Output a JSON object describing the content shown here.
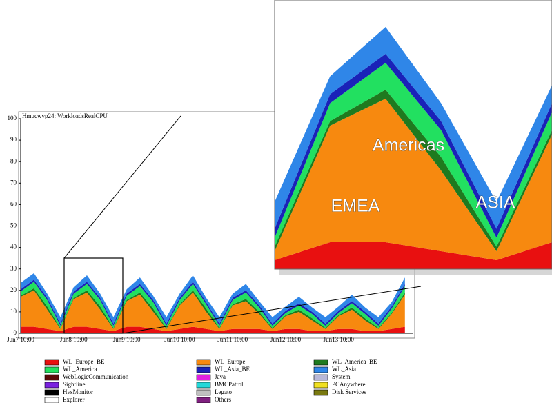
{
  "chart_data": {
    "type": "stacked-area",
    "title": "Hmucwvp24: WorkloadsRealCPU",
    "categories": [
      "Jun7 10:00",
      null,
      null,
      null,
      "Jun8 10:00",
      null,
      null,
      null,
      "Jun9 10:00",
      null,
      null,
      null,
      "Jun10 10:00",
      null,
      null,
      null,
      "Jun11 10:00",
      null,
      null,
      null,
      "Jun12 10:00",
      null,
      null,
      null,
      "Jun13 10:00",
      null,
      null,
      null,
      null,
      null
    ],
    "ylim": [
      0,
      100
    ],
    "yticks": [
      0,
      10,
      20,
      30,
      40,
      50,
      60,
      70,
      80,
      90,
      100
    ],
    "annotations": [
      "Americas",
      "EMEA",
      "ASIA"
    ],
    "series": [
      {
        "name": "WL_Europe_BE",
        "color": "#e81010",
        "values": [
          3,
          3,
          2,
          1,
          3,
          3,
          2,
          1,
          3,
          3,
          2,
          1,
          2,
          3,
          2,
          1,
          2,
          2,
          2,
          1,
          2,
          2,
          1,
          1,
          2,
          2,
          1,
          1,
          2,
          3
        ]
      },
      {
        "name": "WL_Europe",
        "color": "#f7890f",
        "values": [
          14,
          17,
          9,
          1,
          13,
          16,
          9,
          1,
          12,
          15,
          8,
          1,
          11,
          16,
          8,
          1,
          11,
          13,
          7,
          1,
          6,
          8,
          5,
          1,
          6,
          9,
          5,
          1,
          7,
          15
        ]
      },
      {
        "name": "WL_America_BE",
        "color": "#1f7a1f",
        "values": [
          0.5,
          1,
          1.5,
          0.5,
          0.5,
          1,
          1.5,
          0.5,
          0.5,
          1,
          1.5,
          0.5,
          0.5,
          1,
          1.5,
          0.5,
          0.5,
          1,
          1,
          0.5,
          0.5,
          1,
          1,
          0.5,
          0.5,
          1,
          1,
          0.5,
          0.5,
          1
        ]
      },
      {
        "name": "WL_America",
        "color": "#22e060",
        "values": [
          2,
          3,
          3,
          1,
          2,
          3,
          3,
          1,
          2,
          3,
          3,
          1,
          2,
          3,
          2,
          1,
          2,
          3,
          2,
          1,
          1,
          2,
          2,
          1,
          1,
          2,
          2,
          1,
          2,
          3
        ]
      },
      {
        "name": "WL_Asia_BE",
        "color": "#1a22b8",
        "values": [
          1,
          1,
          1,
          1,
          1,
          1,
          1,
          1,
          1,
          1,
          1,
          1,
          1,
          1,
          1,
          1,
          1,
          1,
          1,
          1,
          1,
          1,
          1,
          1,
          1,
          1,
          1,
          1,
          1,
          1
        ]
      },
      {
        "name": "WL_Asia",
        "color": "#2f86e8",
        "values": [
          3,
          3,
          2,
          3,
          2,
          3,
          2,
          3,
          2,
          3,
          2,
          3,
          2,
          3,
          2,
          3,
          2,
          3,
          2,
          3,
          2,
          3,
          2,
          3,
          2,
          3,
          2,
          3,
          2,
          3
        ]
      },
      {
        "name": "WebLogicCommunication",
        "color": "#5a0a0a",
        "values": [
          0,
          0,
          0,
          0,
          0,
          0,
          0,
          0,
          0,
          0,
          0,
          0,
          0,
          0,
          0,
          0,
          0,
          0,
          0,
          0,
          0,
          0,
          0,
          0,
          0,
          0,
          0,
          0,
          0,
          0
        ]
      },
      {
        "name": "Java",
        "color": "#e020e0",
        "values": [
          0,
          0,
          0,
          0,
          0,
          0,
          0,
          0,
          0,
          0,
          0,
          0,
          0,
          0,
          0,
          0,
          0,
          0,
          0,
          0,
          0,
          0,
          0,
          0,
          0,
          0,
          0,
          0,
          0,
          0
        ]
      },
      {
        "name": "System",
        "color": "#b8b8d8",
        "values": [
          0,
          0,
          0,
          0,
          0,
          0,
          0,
          0,
          0,
          0,
          0,
          0,
          0,
          0,
          0,
          0,
          0,
          0,
          0,
          0,
          0,
          0,
          0,
          0,
          0,
          0,
          0,
          0,
          0,
          0
        ]
      },
      {
        "name": "Sightline",
        "color": "#7a22e0",
        "values": [
          0,
          0,
          0,
          0,
          0,
          0,
          0,
          0,
          0,
          0,
          0,
          0,
          0,
          0,
          0,
          0,
          0,
          0,
          0,
          0,
          0,
          0,
          0,
          0,
          0,
          0,
          0,
          0,
          0,
          0
        ]
      },
      {
        "name": "BMCPatrol",
        "color": "#22d8d8",
        "values": [
          0,
          0,
          0,
          0,
          0,
          0,
          0,
          0,
          0,
          0,
          0,
          0,
          0,
          0,
          0,
          0,
          0,
          0,
          0,
          0,
          0,
          0,
          0,
          0,
          0,
          0,
          0,
          0,
          0,
          0
        ]
      },
      {
        "name": "PCAnywhere",
        "color": "#f0e020",
        "values": [
          0,
          0,
          0,
          0,
          0,
          0,
          0,
          0,
          0,
          0,
          0,
          0,
          0,
          0,
          0,
          0,
          0,
          0,
          0,
          0,
          0,
          0,
          0,
          0,
          0,
          0,
          0,
          0,
          0,
          0
        ]
      },
      {
        "name": "HvsMonitor",
        "color": "#000000",
        "values": [
          0,
          0,
          0,
          0,
          0,
          0,
          0,
          0,
          0,
          0,
          0,
          0,
          0,
          0,
          0,
          0,
          0,
          0,
          0,
          0,
          0,
          0,
          0,
          0,
          0,
          0,
          0,
          0,
          0,
          0
        ]
      },
      {
        "name": "Legato",
        "color": "#c0c0c0",
        "values": [
          0,
          0,
          0,
          0,
          0,
          0,
          0,
          0,
          0,
          0,
          0,
          0,
          0,
          0,
          0,
          0,
          0,
          0,
          0,
          0,
          0,
          0,
          0,
          0,
          0,
          0,
          0,
          0,
          0,
          0
        ]
      },
      {
        "name": "Disk Services",
        "color": "#7a7a10",
        "values": [
          0,
          0,
          0,
          0,
          0,
          0,
          0,
          0,
          0,
          0,
          0,
          0,
          0,
          0,
          0,
          0,
          0,
          0,
          0,
          0,
          0,
          0,
          0,
          0,
          0,
          0,
          0,
          0,
          0,
          0
        ]
      },
      {
        "name": "Explorer",
        "color": "#ffffff",
        "values": [
          0,
          0,
          0,
          0,
          0,
          0,
          0,
          0,
          0,
          0,
          0,
          0,
          0,
          0,
          0,
          0,
          0,
          0,
          0,
          0,
          0,
          0,
          0,
          0,
          0,
          0,
          0,
          0,
          0,
          0
        ]
      },
      {
        "name": "Others",
        "color": "#802080",
        "values": [
          0,
          0,
          0,
          0,
          0,
          0,
          0,
          0,
          0,
          0,
          0,
          0,
          0,
          0,
          0,
          0,
          0,
          0,
          0,
          0,
          0,
          0,
          0,
          0,
          0,
          0,
          0,
          0,
          0,
          0
        ]
      }
    ]
  }
}
